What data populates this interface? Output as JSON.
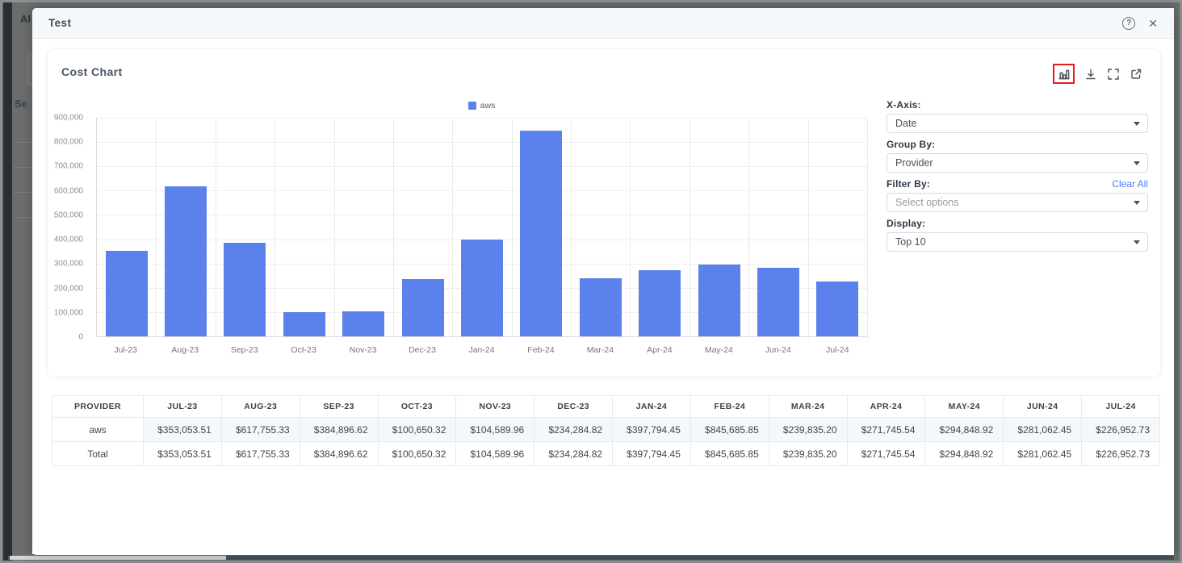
{
  "backdrop": {
    "partial_text_top": "Al",
    "partial_text_mid": "Se"
  },
  "modal": {
    "title": "Test",
    "help_glyph": "?",
    "close_glyph": "✕"
  },
  "card": {
    "title": "Cost Chart",
    "toolbar_icons": [
      "bar-chart",
      "download",
      "fullscreen",
      "external-link"
    ]
  },
  "controls": {
    "x_axis": {
      "label": "X-Axis:",
      "value": "Date"
    },
    "group_by": {
      "label": "Group By:",
      "value": "Provider"
    },
    "filter_by": {
      "label": "Filter By:",
      "placeholder": "Select options",
      "clear_all": "Clear All"
    },
    "display": {
      "label": "Display:",
      "value": "Top 10"
    }
  },
  "chart_data": {
    "type": "bar",
    "title": "Cost Chart",
    "legend": [
      "aws"
    ],
    "legend_position": "top-center",
    "categories": [
      "Jul-23",
      "Aug-23",
      "Sep-23",
      "Oct-23",
      "Nov-23",
      "Dec-23",
      "Jan-24",
      "Feb-24",
      "Mar-24",
      "Apr-24",
      "May-24",
      "Jun-24",
      "Jul-24"
    ],
    "series": [
      {
        "name": "aws",
        "values": [
          353053.51,
          617755.33,
          384896.62,
          100650.32,
          104589.96,
          234284.82,
          397794.45,
          845685.85,
          239835.2,
          271745.54,
          294848.92,
          281062.45,
          226952.73
        ]
      }
    ],
    "xlabel": "",
    "ylabel": "",
    "ylim": [
      0,
      900000
    ],
    "y_ticks": [
      "900,000",
      "800,000",
      "700,000",
      "600,000",
      "500,000",
      "400,000",
      "300,000",
      "200,000",
      "100,000",
      "0"
    ],
    "grid": true,
    "bar_color": "#5b82ec"
  },
  "table": {
    "headers": [
      "PROVIDER",
      "JUL-23",
      "AUG-23",
      "SEP-23",
      "OCT-23",
      "NOV-23",
      "DEC-23",
      "JAN-24",
      "FEB-24",
      "MAR-24",
      "APR-24",
      "MAY-24",
      "JUN-24",
      "JUL-24"
    ],
    "rows": [
      {
        "label": "aws",
        "values": [
          "$353,053.51",
          "$617,755.33",
          "$384,896.62",
          "$100,650.32",
          "$104,589.96",
          "$234,284.82",
          "$397,794.45",
          "$845,685.85",
          "$239,835.20",
          "$271,745.54",
          "$294,848.92",
          "$281,062.45",
          "$226,952.73"
        ]
      },
      {
        "label": "Total",
        "values": [
          "$353,053.51",
          "$617,755.33",
          "$384,896.62",
          "$100,650.32",
          "$104,589.96",
          "$234,284.82",
          "$397,794.45",
          "$845,685.85",
          "$239,835.20",
          "$271,745.54",
          "$294,848.92",
          "$281,062.45",
          "$226,952.73"
        ]
      }
    ]
  },
  "colors": {
    "bar": "#5b82ec",
    "link": "#4d7cf0",
    "highlight_box": "#e11d1d"
  }
}
